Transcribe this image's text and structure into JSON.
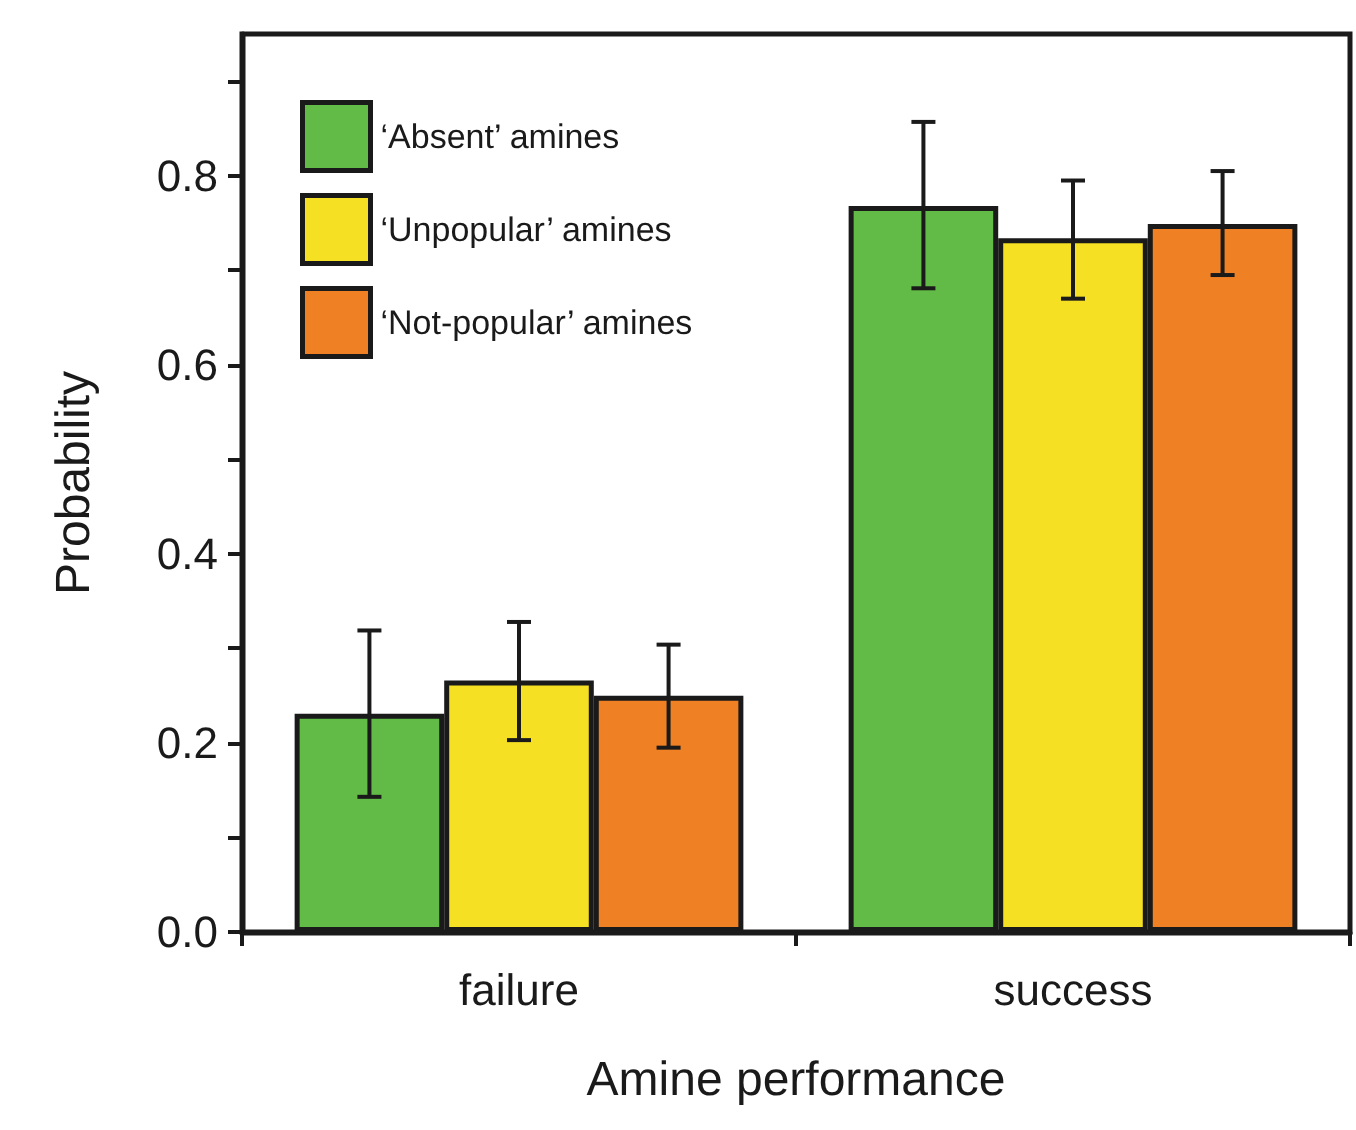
{
  "chart_data": {
    "type": "bar",
    "xlabel": "Amine performance",
    "ylabel": "Probability",
    "categories": [
      "failure",
      "success"
    ],
    "series": [
      {
        "name": "‘Absent’ amines",
        "color": "#62bb46",
        "values": [
          0.231,
          0.768
        ],
        "errors": [
          [
            0.143,
            0.319
          ],
          [
            0.681,
            0.857
          ]
        ]
      },
      {
        "name": "‘Unpopular’ amines",
        "color": "#f5e024",
        "values": [
          0.266,
          0.734
        ],
        "errors": [
          [
            0.203,
            0.328
          ],
          [
            0.67,
            0.795
          ]
        ]
      },
      {
        "name": "‘Not-popular’ amines",
        "color": "#f08024",
        "values": [
          0.25,
          0.749
        ],
        "errors": [
          [
            0.195,
            0.304
          ],
          [
            0.695,
            0.805
          ]
        ]
      }
    ],
    "ylim": [
      0,
      0.95
    ],
    "yticks": [
      {
        "value": 0,
        "label": "0.0"
      },
      {
        "value": 0.1,
        "label": null
      },
      0.2,
      {
        "value": 0.3,
        "label": null
      },
      0.4,
      {
        "value": 0.5,
        "label": null
      },
      0.6,
      {
        "value": 0.7,
        "label": null
      },
      0.8,
      {
        "value": 0.9,
        "label": null
      }
    ],
    "grid": false,
    "legend": "top left"
  }
}
